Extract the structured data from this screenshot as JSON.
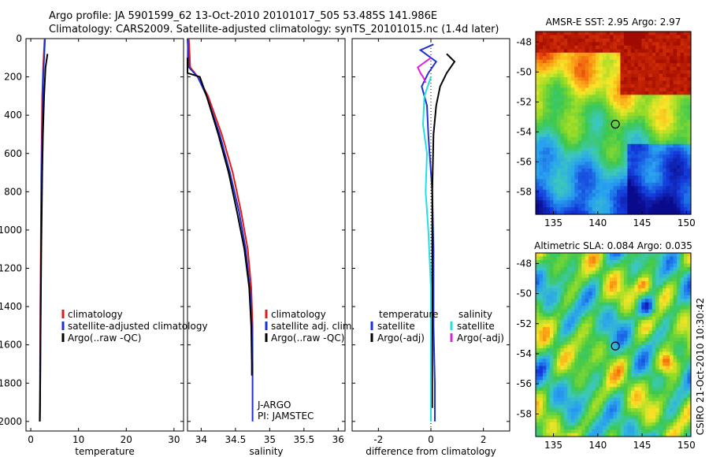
{
  "header": {
    "line1": "Argo profile: JA 5901599_62 13-Oct-2010 20101017_505 53.485S 141.986E",
    "line2": "Climatology: CARS2009. Satellite-adjusted climatology: synTS_20101015.nc (1.4d later)"
  },
  "side_label": "CSIRO 21-Oct-2010 10:30:42",
  "colors": {
    "climatology": "#e31a1c",
    "satellite": "#1f2fd6",
    "argo": "#000000",
    "satellite_salinity_diff": "#22e0e0",
    "argo_salinity_diff": "#e020e0"
  },
  "chart_data": [
    {
      "type": "line",
      "xlabel": "temperature",
      "ylabel": "",
      "xlim": [
        -1,
        32
      ],
      "ylim": [
        2050,
        0
      ],
      "xticks": [
        "0",
        "10",
        "20",
        "30"
      ],
      "yticks": [
        "0",
        "200",
        "400",
        "600",
        "800",
        "1000",
        "1200",
        "1400",
        "1600",
        "1800",
        "2000"
      ],
      "legend": [
        "climatology",
        "satellite-adjusted climatology",
        "Argo(..raw -QC)"
      ],
      "series": [
        {
          "name": "climatology",
          "color": "#e31a1c",
          "x": [
            2.9,
            2.6,
            2.4,
            2.3,
            2.2,
            2.15,
            2.1,
            2.0,
            1.95,
            1.9,
            1.85
          ],
          "y": [
            0,
            150,
            300,
            500,
            700,
            900,
            1100,
            1400,
            1700,
            1900,
            2000
          ]
        },
        {
          "name": "satellite-adjusted climatology",
          "color": "#1f2fd6",
          "x": [
            3.0,
            2.7,
            2.5,
            2.4,
            2.3,
            2.2,
            2.15,
            2.05,
            2.0,
            1.95,
            1.9
          ],
          "y": [
            0,
            150,
            300,
            500,
            700,
            900,
            1100,
            1400,
            1700,
            1900,
            2000
          ]
        },
        {
          "name": "Argo(..raw -QC)",
          "color": "#000000",
          "x": [
            3.5,
            3.1,
            2.8,
            2.55,
            2.4,
            2.3,
            2.2,
            2.1,
            2.0,
            1.95,
            1.9
          ],
          "y": [
            80,
            150,
            300,
            500,
            700,
            900,
            1100,
            1400,
            1700,
            1900,
            2000
          ]
        }
      ]
    },
    {
      "type": "line",
      "xlabel": "salinity",
      "ylabel": "",
      "xlim": [
        33.8,
        36.1
      ],
      "ylim": [
        2050,
        0
      ],
      "xticks": [
        "34",
        "34.5",
        "35",
        "35.5",
        "36"
      ],
      "yticks": [],
      "legend": [
        "climatology",
        "satellite adj. clim.",
        "Argo(..raw -QC)"
      ],
      "annotation": [
        "J-ARGO",
        "PI: JAMSTEC"
      ],
      "series": [
        {
          "name": "climatology",
          "color": "#e31a1c",
          "x": [
            33.82,
            33.84,
            33.95,
            34.1,
            34.3,
            34.46,
            34.58,
            34.68,
            34.73,
            34.75,
            34.75,
            34.75
          ],
          "y": [
            0,
            150,
            200,
            300,
            500,
            700,
            900,
            1100,
            1300,
            1500,
            1700,
            1750
          ]
        },
        {
          "name": "satellite adj. clim.",
          "color": "#1f2fd6",
          "x": [
            33.8,
            33.82,
            33.95,
            34.08,
            34.27,
            34.42,
            34.55,
            34.65,
            34.71,
            34.74,
            34.75,
            34.75
          ],
          "y": [
            0,
            150,
            200,
            300,
            500,
            700,
            900,
            1100,
            1300,
            1500,
            1700,
            2000
          ]
        },
        {
          "name": "Argo(..raw -QC)",
          "color": "#000000",
          "x": [
            33.8,
            33.8,
            33.98,
            34.08,
            34.25,
            34.4,
            34.52,
            34.63,
            34.7,
            34.73,
            34.74,
            34.74
          ],
          "y": [
            100,
            180,
            200,
            300,
            500,
            700,
            900,
            1100,
            1300,
            1500,
            1700,
            1760
          ]
        }
      ]
    },
    {
      "type": "line",
      "xlabel": "difference from climatology",
      "ylabel": "",
      "xlim": [
        -3,
        3
      ],
      "ylim": [
        2050,
        0
      ],
      "xticks": [
        "-2",
        "0",
        "2"
      ],
      "yticks": [],
      "legend_temperature": [
        "temperature",
        "satellite",
        "Argo(-adj)"
      ],
      "legend_salinity": [
        "salinity",
        "satellite",
        "Argo(-adj)"
      ],
      "series": [
        {
          "name": "temperature satellite",
          "color": "#1f2fd6",
          "x": [
            0.1,
            -0.4,
            0.2,
            -0.1,
            -0.35,
            -0.15,
            -0.1,
            0.05,
            0.1,
            0.1,
            0.15,
            0.15
          ],
          "y": [
            30,
            60,
            120,
            180,
            250,
            350,
            500,
            800,
            1100,
            1500,
            1800,
            2000
          ]
        },
        {
          "name": "temperature Argo(-adj)",
          "color": "#000000",
          "x": [
            0.6,
            0.9,
            0.6,
            0.35,
            0.2,
            0.1,
            0.05,
            0.05,
            0.05,
            0.05,
            0.05
          ],
          "y": [
            80,
            120,
            180,
            250,
            350,
            500,
            800,
            1100,
            1500,
            1800,
            1930
          ]
        },
        {
          "name": "salinity satellite",
          "color": "#22e0e0",
          "x": [
            0.0,
            -0.25,
            -0.3,
            -0.15,
            -0.2,
            -0.1,
            0.0,
            0.0,
            0.0,
            0.0
          ],
          "y": [
            200,
            300,
            450,
            600,
            800,
            1000,
            1300,
            1600,
            1900,
            2000
          ]
        },
        {
          "name": "salinity Argo(-adj)",
          "color": "#e020e0",
          "x": [
            0.0,
            -0.5,
            -0.4,
            -0.3,
            -0.2
          ],
          "y": [
            100,
            150,
            180,
            200,
            230
          ]
        }
      ]
    },
    {
      "type": "heatmap",
      "title": "AMSR-E SST: 2.95 Argo: 2.97",
      "xticks": [
        "135",
        "140",
        "145",
        "150"
      ],
      "yticks": [
        "-48",
        "-50",
        "-52",
        "-54",
        "-56",
        "-58"
      ],
      "xlim": [
        133,
        150.5
      ],
      "ylim": [
        -59.5,
        -47.3
      ],
      "marker": {
        "lon": 141.986,
        "lat": -53.485
      }
    },
    {
      "type": "heatmap",
      "title": "Altimetric SLA: 0.084 Argo: 0.035",
      "xticks": [
        "135",
        "140",
        "145",
        "150"
      ],
      "yticks": [
        "-48",
        "-50",
        "-52",
        "-54",
        "-56",
        "-58"
      ],
      "xlim": [
        133,
        150.5
      ],
      "ylim": [
        -59.5,
        -47.3
      ],
      "marker": {
        "lon": 141.986,
        "lat": -53.485
      }
    }
  ]
}
